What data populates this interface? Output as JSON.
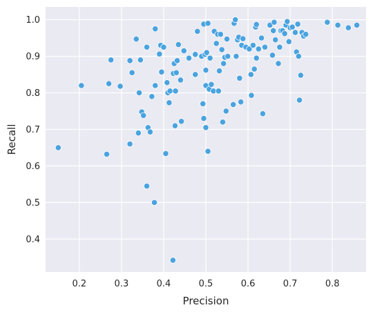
{
  "chart_data": {
    "type": "scatter",
    "xlabel": "Precision",
    "ylabel": "Recall",
    "xlim": [
      0.12,
      0.88
    ],
    "ylim": [
      0.31,
      1.035
    ],
    "x_ticks": [
      0.2,
      0.3,
      0.4,
      0.5,
      0.6,
      0.7,
      0.8
    ],
    "y_ticks": [
      0.4,
      0.5,
      0.6,
      0.7,
      0.8,
      0.9,
      1.0
    ],
    "x_tick_labels": [
      "0.2",
      "0.3",
      "0.4",
      "0.5",
      "0.6",
      "0.7",
      "0.8"
    ],
    "y_tick_labels": [
      "0.4",
      "0.5",
      "0.6",
      "0.7",
      "0.8",
      "0.9",
      "1.0"
    ],
    "grid": true,
    "point_color": "#4aa3df",
    "background_color": "#eaeaf2",
    "points": [
      [
        0.15,
        0.65
      ],
      [
        0.205,
        0.82
      ],
      [
        0.265,
        0.632
      ],
      [
        0.27,
        0.825
      ],
      [
        0.275,
        0.89
      ],
      [
        0.297,
        0.818
      ],
      [
        0.32,
        0.66
      ],
      [
        0.32,
        0.888
      ],
      [
        0.325,
        0.855
      ],
      [
        0.335,
        0.947
      ],
      [
        0.34,
        0.69
      ],
      [
        0.342,
        0.8
      ],
      [
        0.345,
        0.89
      ],
      [
        0.348,
        0.748
      ],
      [
        0.352,
        0.738
      ],
      [
        0.36,
        0.545
      ],
      [
        0.36,
        0.925
      ],
      [
        0.363,
        0.705
      ],
      [
        0.368,
        0.693
      ],
      [
        0.372,
        0.79
      ],
      [
        0.378,
        0.5
      ],
      [
        0.38,
        0.975
      ],
      [
        0.38,
        0.82
      ],
      [
        0.39,
        0.906
      ],
      [
        0.393,
        0.93
      ],
      [
        0.395,
        0.857
      ],
      [
        0.4,
        0.925
      ],
      [
        0.405,
        0.634
      ],
      [
        0.408,
        0.828
      ],
      [
        0.41,
        0.8
      ],
      [
        0.413,
        0.773
      ],
      [
        0.415,
        0.805
      ],
      [
        0.422,
        0.342
      ],
      [
        0.423,
        0.853
      ],
      [
        0.425,
        0.88
      ],
      [
        0.427,
        0.71
      ],
      [
        0.428,
        0.805
      ],
      [
        0.43,
        0.855
      ],
      [
        0.432,
        0.888
      ],
      [
        0.435,
        0.932
      ],
      [
        0.44,
        0.835
      ],
      [
        0.442,
        0.722
      ],
      [
        0.448,
        0.915
      ],
      [
        0.46,
        0.895
      ],
      [
        0.475,
        0.85
      ],
      [
        0.475,
        0.905
      ],
      [
        0.48,
        0.968
      ],
      [
        0.49,
        0.9
      ],
      [
        0.493,
        0.77
      ],
      [
        0.495,
        0.73
      ],
      [
        0.495,
        0.988
      ],
      [
        0.498,
        0.905
      ],
      [
        0.5,
        0.705
      ],
      [
        0.5,
        0.862
      ],
      [
        0.5,
        0.82
      ],
      [
        0.502,
        0.91
      ],
      [
        0.505,
        0.99
      ],
      [
        0.505,
        0.64
      ],
      [
        0.508,
        0.81
      ],
      [
        0.51,
        0.895
      ],
      [
        0.513,
        0.823
      ],
      [
        0.518,
        0.805
      ],
      [
        0.52,
        0.968
      ],
      [
        0.525,
        0.935
      ],
      [
        0.528,
        0.96
      ],
      [
        0.53,
        0.805
      ],
      [
        0.532,
        0.86
      ],
      [
        0.535,
        0.96
      ],
      [
        0.538,
        0.918
      ],
      [
        0.54,
        0.72
      ],
      [
        0.542,
        0.88
      ],
      [
        0.545,
        0.897
      ],
      [
        0.548,
        0.75
      ],
      [
        0.55,
        0.947
      ],
      [
        0.552,
        0.9
      ],
      [
        0.565,
        0.768
      ],
      [
        0.567,
        0.99
      ],
      [
        0.57,
        1.0
      ],
      [
        0.572,
        0.9
      ],
      [
        0.575,
        0.945
      ],
      [
        0.578,
        0.952
      ],
      [
        0.58,
        0.84
      ],
      [
        0.583,
        0.775
      ],
      [
        0.585,
        0.93
      ],
      [
        0.588,
        0.948
      ],
      [
        0.595,
        0.925
      ],
      [
        0.603,
        0.92
      ],
      [
        0.607,
        0.85
      ],
      [
        0.608,
        0.793
      ],
      [
        0.612,
        0.93
      ],
      [
        0.615,
        0.865
      ],
      [
        0.618,
        0.98
      ],
      [
        0.62,
        0.987
      ],
      [
        0.62,
        0.895
      ],
      [
        0.625,
        0.92
      ],
      [
        0.632,
        0.95
      ],
      [
        0.635,
        0.743
      ],
      [
        0.64,
        0.925
      ],
      [
        0.652,
        0.985
      ],
      [
        0.658,
        0.903
      ],
      [
        0.66,
        0.97
      ],
      [
        0.662,
        0.993
      ],
      [
        0.665,
        0.945
      ],
      [
        0.672,
        0.88
      ],
      [
        0.675,
        0.925
      ],
      [
        0.678,
        0.97
      ],
      [
        0.682,
        0.97
      ],
      [
        0.687,
        0.962
      ],
      [
        0.69,
        0.985
      ],
      [
        0.693,
        0.995
      ],
      [
        0.697,
        0.94
      ],
      [
        0.7,
        0.978
      ],
      [
        0.705,
        0.98
      ],
      [
        0.712,
        0.965
      ],
      [
        0.715,
        0.912
      ],
      [
        0.718,
        0.988
      ],
      [
        0.72,
        0.9
      ],
      [
        0.722,
        0.78
      ],
      [
        0.725,
        0.848
      ],
      [
        0.728,
        0.965
      ],
      [
        0.732,
        0.955
      ],
      [
        0.737,
        0.96
      ],
      [
        0.788,
        0.993
      ],
      [
        0.813,
        0.985
      ],
      [
        0.838,
        0.978
      ],
      [
        0.858,
        0.985
      ]
    ]
  }
}
